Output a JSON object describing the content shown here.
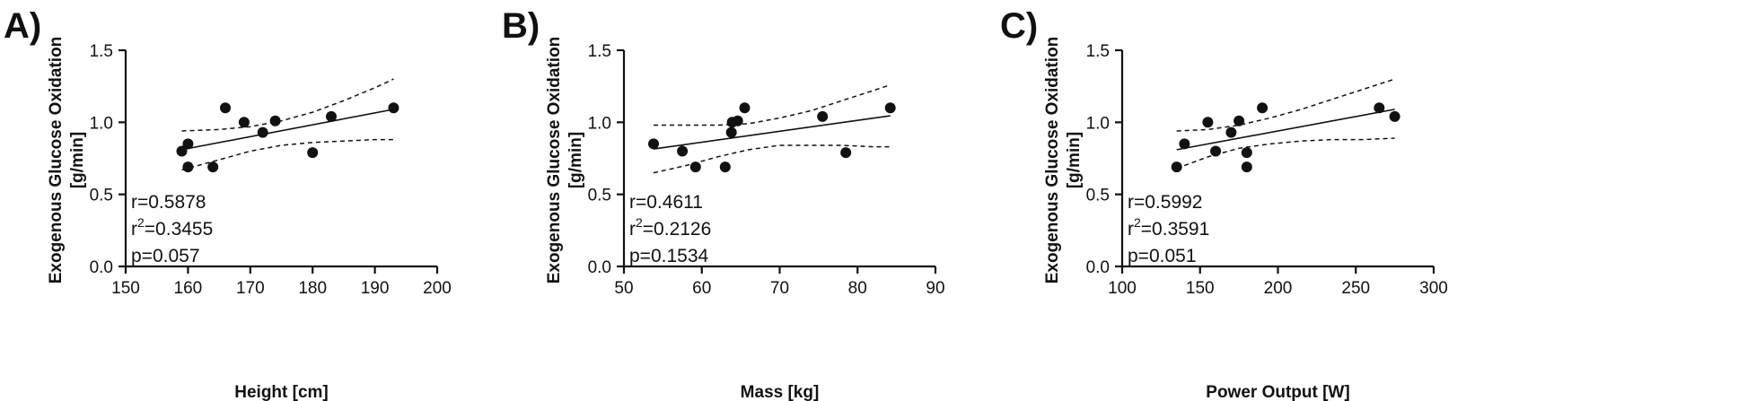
{
  "chart_data": [
    {
      "type": "scatter",
      "panel_label": "A)",
      "xlabel": "Height [cm]",
      "ylabel_line1": "Exogenous Glucose Oxidation",
      "ylabel_line2": "[g/min]",
      "xlim": [
        150,
        200
      ],
      "ylim": [
        0.0,
        1.5
      ],
      "xticks": [
        150,
        160,
        170,
        180,
        190,
        200
      ],
      "xtick_labels": [
        "150",
        "160",
        "170",
        "180",
        "190",
        "200"
      ],
      "yticks": [
        0.0,
        0.5,
        1.0,
        1.5
      ],
      "ytick_labels": [
        "0.0",
        "0.5",
        "1.0",
        "1.5"
      ],
      "points": [
        {
          "x": 159,
          "y": 0.8
        },
        {
          "x": 160,
          "y": 0.85
        },
        {
          "x": 160,
          "y": 0.69
        },
        {
          "x": 164,
          "y": 0.69
        },
        {
          "x": 166,
          "y": 1.1
        },
        {
          "x": 169,
          "y": 1.0
        },
        {
          "x": 172,
          "y": 0.93
        },
        {
          "x": 174,
          "y": 1.01
        },
        {
          "x": 180,
          "y": 0.79
        },
        {
          "x": 183,
          "y": 1.04
        },
        {
          "x": 193,
          "y": 1.1
        }
      ],
      "fit": {
        "x": [
          159,
          193
        ],
        "y": [
          0.81,
          1.09
        ]
      },
      "ci_upper": {
        "x": [
          159,
          165,
          170,
          175,
          180,
          185,
          190,
          193
        ],
        "y": [
          0.94,
          0.95,
          0.97,
          1.01,
          1.07,
          1.15,
          1.24,
          1.3
        ]
      },
      "ci_lower": {
        "x": [
          159,
          165,
          170,
          175,
          180,
          185,
          190,
          193
        ],
        "y": [
          0.67,
          0.74,
          0.8,
          0.84,
          0.86,
          0.87,
          0.88,
          0.88
        ]
      },
      "stats": {
        "r": "r=0.5878",
        "r2_prefix": "r",
        "r2_sup": "2",
        "r2_value": "=0.3455",
        "p": "p=0.057"
      }
    },
    {
      "type": "scatter",
      "panel_label": "B)",
      "xlabel": "Mass [kg]",
      "ylabel_line1": "Exogenous Glucose Oxidation",
      "ylabel_line2": "[g/min]",
      "xlim": [
        50,
        90
      ],
      "ylim": [
        0.0,
        1.5
      ],
      "xticks": [
        50,
        60,
        70,
        80,
        90
      ],
      "xtick_labels": [
        "50",
        "60",
        "70",
        "80",
        "90"
      ],
      "yticks": [
        0.0,
        0.5,
        1.0,
        1.5
      ],
      "ytick_labels": [
        "0.0",
        "0.5",
        "1.0",
        "1.5"
      ],
      "points": [
        {
          "x": 53.8,
          "y": 0.85
        },
        {
          "x": 57.5,
          "y": 0.8
        },
        {
          "x": 59.2,
          "y": 0.69
        },
        {
          "x": 63.0,
          "y": 0.69
        },
        {
          "x": 63.8,
          "y": 0.93
        },
        {
          "x": 63.9,
          "y": 1.0
        },
        {
          "x": 64.6,
          "y": 1.01
        },
        {
          "x": 65.5,
          "y": 1.1
        },
        {
          "x": 75.5,
          "y": 1.04
        },
        {
          "x": 78.5,
          "y": 0.79
        },
        {
          "x": 84.2,
          "y": 1.1
        }
      ],
      "fit": {
        "x": [
          53.8,
          84.2
        ],
        "y": [
          0.815,
          1.045
        ]
      },
      "ci_upper": {
        "x": [
          53.8,
          58,
          62,
          66,
          70,
          74,
          78,
          82,
          84.2
        ],
        "y": [
          0.98,
          0.98,
          0.98,
          0.99,
          1.03,
          1.08,
          1.15,
          1.22,
          1.26
        ]
      },
      "ci_lower": {
        "x": [
          53.8,
          58,
          62,
          66,
          70,
          74,
          78,
          82,
          84.2
        ],
        "y": [
          0.65,
          0.7,
          0.76,
          0.81,
          0.84,
          0.84,
          0.84,
          0.83,
          0.83
        ]
      },
      "stats": {
        "r": "r=0.4611",
        "r2_prefix": "r",
        "r2_sup": "2",
        "r2_value": "=0.2126",
        "p": "p=0.1534"
      }
    },
    {
      "type": "scatter",
      "panel_label": "C)",
      "xlabel": "Power Output [W]",
      "ylabel_line1": "Exogenous Glucose Oxidation",
      "ylabel_line2": "[g/min]",
      "xlim": [
        100,
        300
      ],
      "ylim": [
        0.0,
        1.5
      ],
      "xticks": [
        100,
        150,
        200,
        250,
        300
      ],
      "xtick_labels": [
        "100",
        "150",
        "200",
        "250",
        "300"
      ],
      "yticks": [
        0.0,
        0.5,
        1.0,
        1.5
      ],
      "ytick_labels": [
        "0.0",
        "0.5",
        "1.0",
        "1.5"
      ],
      "points": [
        {
          "x": 135,
          "y": 0.69
        },
        {
          "x": 140,
          "y": 0.85
        },
        {
          "x": 155,
          "y": 1.0
        },
        {
          "x": 160,
          "y": 0.8
        },
        {
          "x": 170,
          "y": 0.93
        },
        {
          "x": 175,
          "y": 1.01
        },
        {
          "x": 180,
          "y": 0.79
        },
        {
          "x": 180,
          "y": 0.69
        },
        {
          "x": 190,
          "y": 1.1
        },
        {
          "x": 265,
          "y": 1.1
        },
        {
          "x": 275,
          "y": 1.04
        }
      ],
      "fit": {
        "x": [
          135,
          275
        ],
        "y": [
          0.81,
          1.09
        ]
      },
      "ci_upper": {
        "x": [
          135,
          155,
          175,
          195,
          215,
          235,
          255,
          275
        ],
        "y": [
          0.94,
          0.95,
          0.98,
          1.03,
          1.09,
          1.16,
          1.23,
          1.3
        ]
      },
      "ci_lower": {
        "x": [
          135,
          155,
          175,
          195,
          215,
          235,
          255,
          275
        ],
        "y": [
          0.68,
          0.76,
          0.82,
          0.85,
          0.87,
          0.88,
          0.88,
          0.89
        ]
      },
      "stats": {
        "r": "r=0.5992",
        "r2_prefix": "r",
        "r2_sup": "2",
        "r2_value": "=0.3591",
        "p": "p=0.051"
      }
    }
  ]
}
